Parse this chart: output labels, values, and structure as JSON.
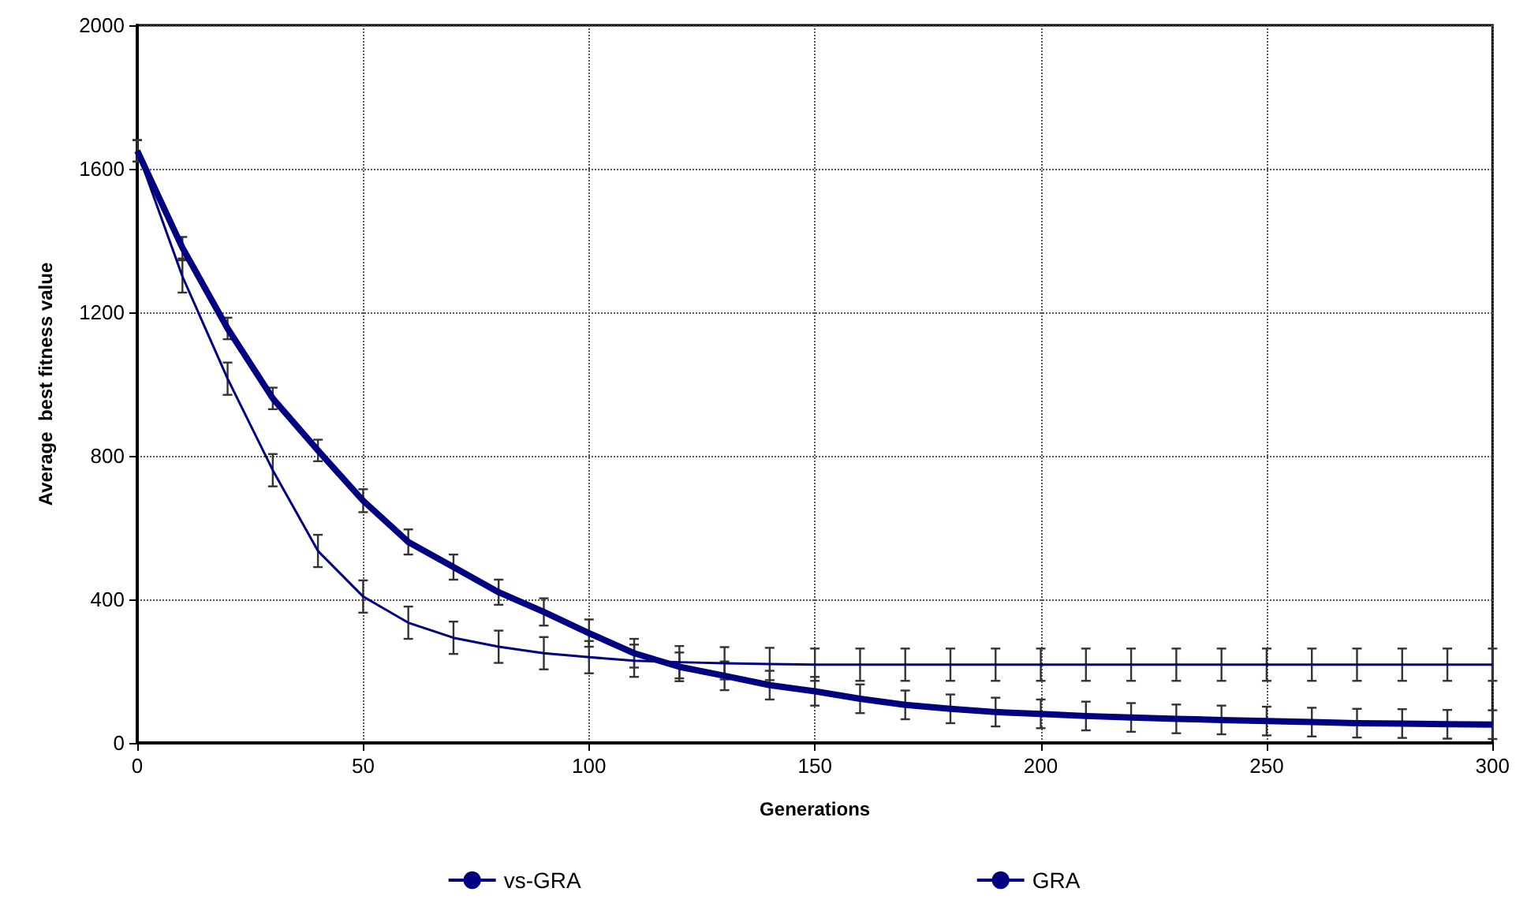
{
  "chart_data": {
    "type": "line",
    "xlabel": "Generations",
    "ylabel": "Average  best fitness value",
    "x": [
      0,
      10,
      20,
      30,
      40,
      50,
      60,
      70,
      80,
      90,
      100,
      110,
      120,
      130,
      140,
      150,
      160,
      170,
      180,
      190,
      200,
      210,
      220,
      230,
      240,
      250,
      260,
      270,
      280,
      290,
      300
    ],
    "series": [
      {
        "name": "vs-GRA",
        "color": "#000080",
        "values": [
          1650,
          1380,
          1155,
          960,
          815,
          675,
          560,
          490,
          420,
          365,
          306,
          250,
          212,
          187,
          161,
          144,
          123,
          106,
          95,
          86,
          81,
          75,
          71,
          67,
          64,
          61,
          58,
          55,
          54,
          52,
          51
        ],
        "errors": [
          30,
          30,
          30,
          30,
          30,
          32,
          35,
          35,
          35,
          38,
          38,
          40,
          40,
          40,
          40,
          40,
          40,
          40,
          40,
          40,
          40,
          40,
          40,
          40,
          40,
          40,
          40,
          40,
          40,
          40,
          40
        ]
      },
      {
        "name": "GRA",
        "color": "#000080",
        "values": [
          1650,
          1300,
          1015,
          760,
          535,
          408,
          335,
          293,
          268,
          250,
          239,
          229,
          225,
          222,
          220,
          218,
          218,
          218,
          218,
          218,
          218,
          218,
          218,
          218,
          218,
          218,
          218,
          218,
          218,
          218,
          218
        ],
        "errors": [
          30,
          45,
          45,
          45,
          45,
          45,
          45,
          45,
          45,
          45,
          45,
          45,
          45,
          45,
          45,
          45,
          45,
          45,
          45,
          45,
          45,
          45,
          45,
          45,
          45,
          45,
          45,
          45,
          45,
          45,
          45
        ]
      }
    ],
    "xlim": [
      0,
      300
    ],
    "xticks": [
      0,
      50,
      100,
      150,
      200,
      250,
      300
    ],
    "ylim": [
      0,
      2000
    ],
    "yticks": [
      0,
      400,
      800,
      1200,
      1600,
      2000
    ],
    "grid": true,
    "legend": "bottom",
    "marker": "none",
    "line_style": "solid"
  }
}
